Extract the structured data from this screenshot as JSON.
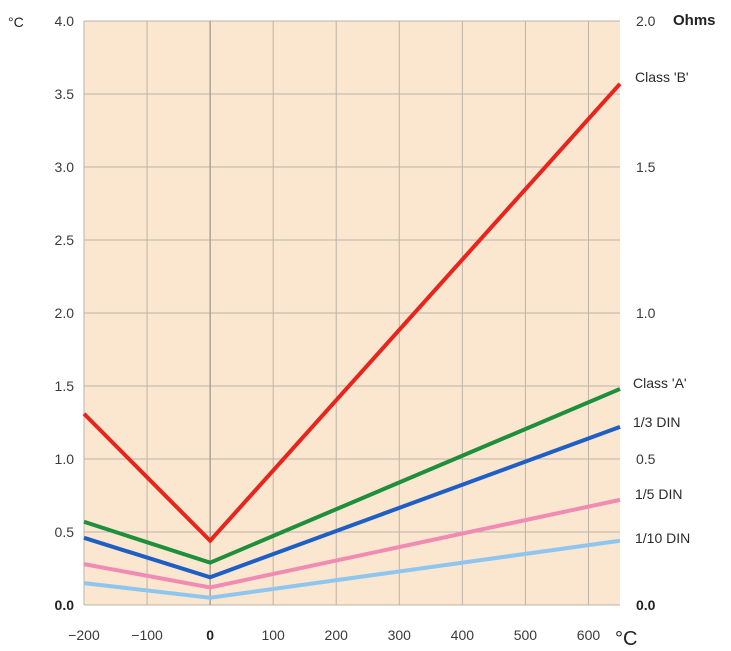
{
  "chart_data": {
    "type": "line",
    "xlabel": "°C",
    "ylabel": "°C",
    "y2label": "Ohms",
    "xlim": [
      -200,
      650
    ],
    "ylim": [
      0,
      4.0
    ],
    "y2lim": [
      0,
      2.0
    ],
    "grid": true,
    "background": "#fbe6cf",
    "x_ticks": [
      -200,
      -100,
      0,
      100,
      200,
      300,
      400,
      500,
      600
    ],
    "x_tick_labels": [
      "−200",
      "−100",
      "0",
      "100",
      "200",
      "300",
      "400",
      "500",
      "600"
    ],
    "y_ticks": [
      0,
      0.5,
      1.0,
      1.5,
      2.0,
      2.5,
      3.0,
      3.5,
      4.0
    ],
    "y_tick_labels": [
      "0.0",
      "0.5",
      "1.0",
      "1.5",
      "2.0",
      "2.5",
      "3.0",
      "3.5",
      "4.0"
    ],
    "y2_ticks": [
      0,
      0.5,
      1.0,
      1.5,
      2.0
    ],
    "y2_tick_labels": [
      "0.0",
      "0.5",
      "1.0",
      "1.5",
      "2.0"
    ],
    "series": [
      {
        "name": "Class 'B'",
        "color": "#e8241c",
        "x": [
          -200,
          0,
          650
        ],
        "values": [
          1.31,
          0.44,
          3.57
        ]
      },
      {
        "name": "Class 'A'",
        "color": "#1e8f3c",
        "x": [
          -200,
          0,
          650
        ],
        "values": [
          0.57,
          0.29,
          1.48
        ]
      },
      {
        "name": "1/3 DIN",
        "color": "#1d5fc4",
        "x": [
          -200,
          0,
          650
        ],
        "values": [
          0.46,
          0.19,
          1.22
        ]
      },
      {
        "name": "1/5 DIN",
        "color": "#f08cb4",
        "x": [
          -200,
          0,
          650
        ],
        "values": [
          0.28,
          0.12,
          0.72
        ]
      },
      {
        "name": "1/10 DIN",
        "color": "#8ec6f0",
        "x": [
          -200,
          0,
          650
        ],
        "values": [
          0.15,
          0.05,
          0.44
        ]
      }
    ]
  }
}
